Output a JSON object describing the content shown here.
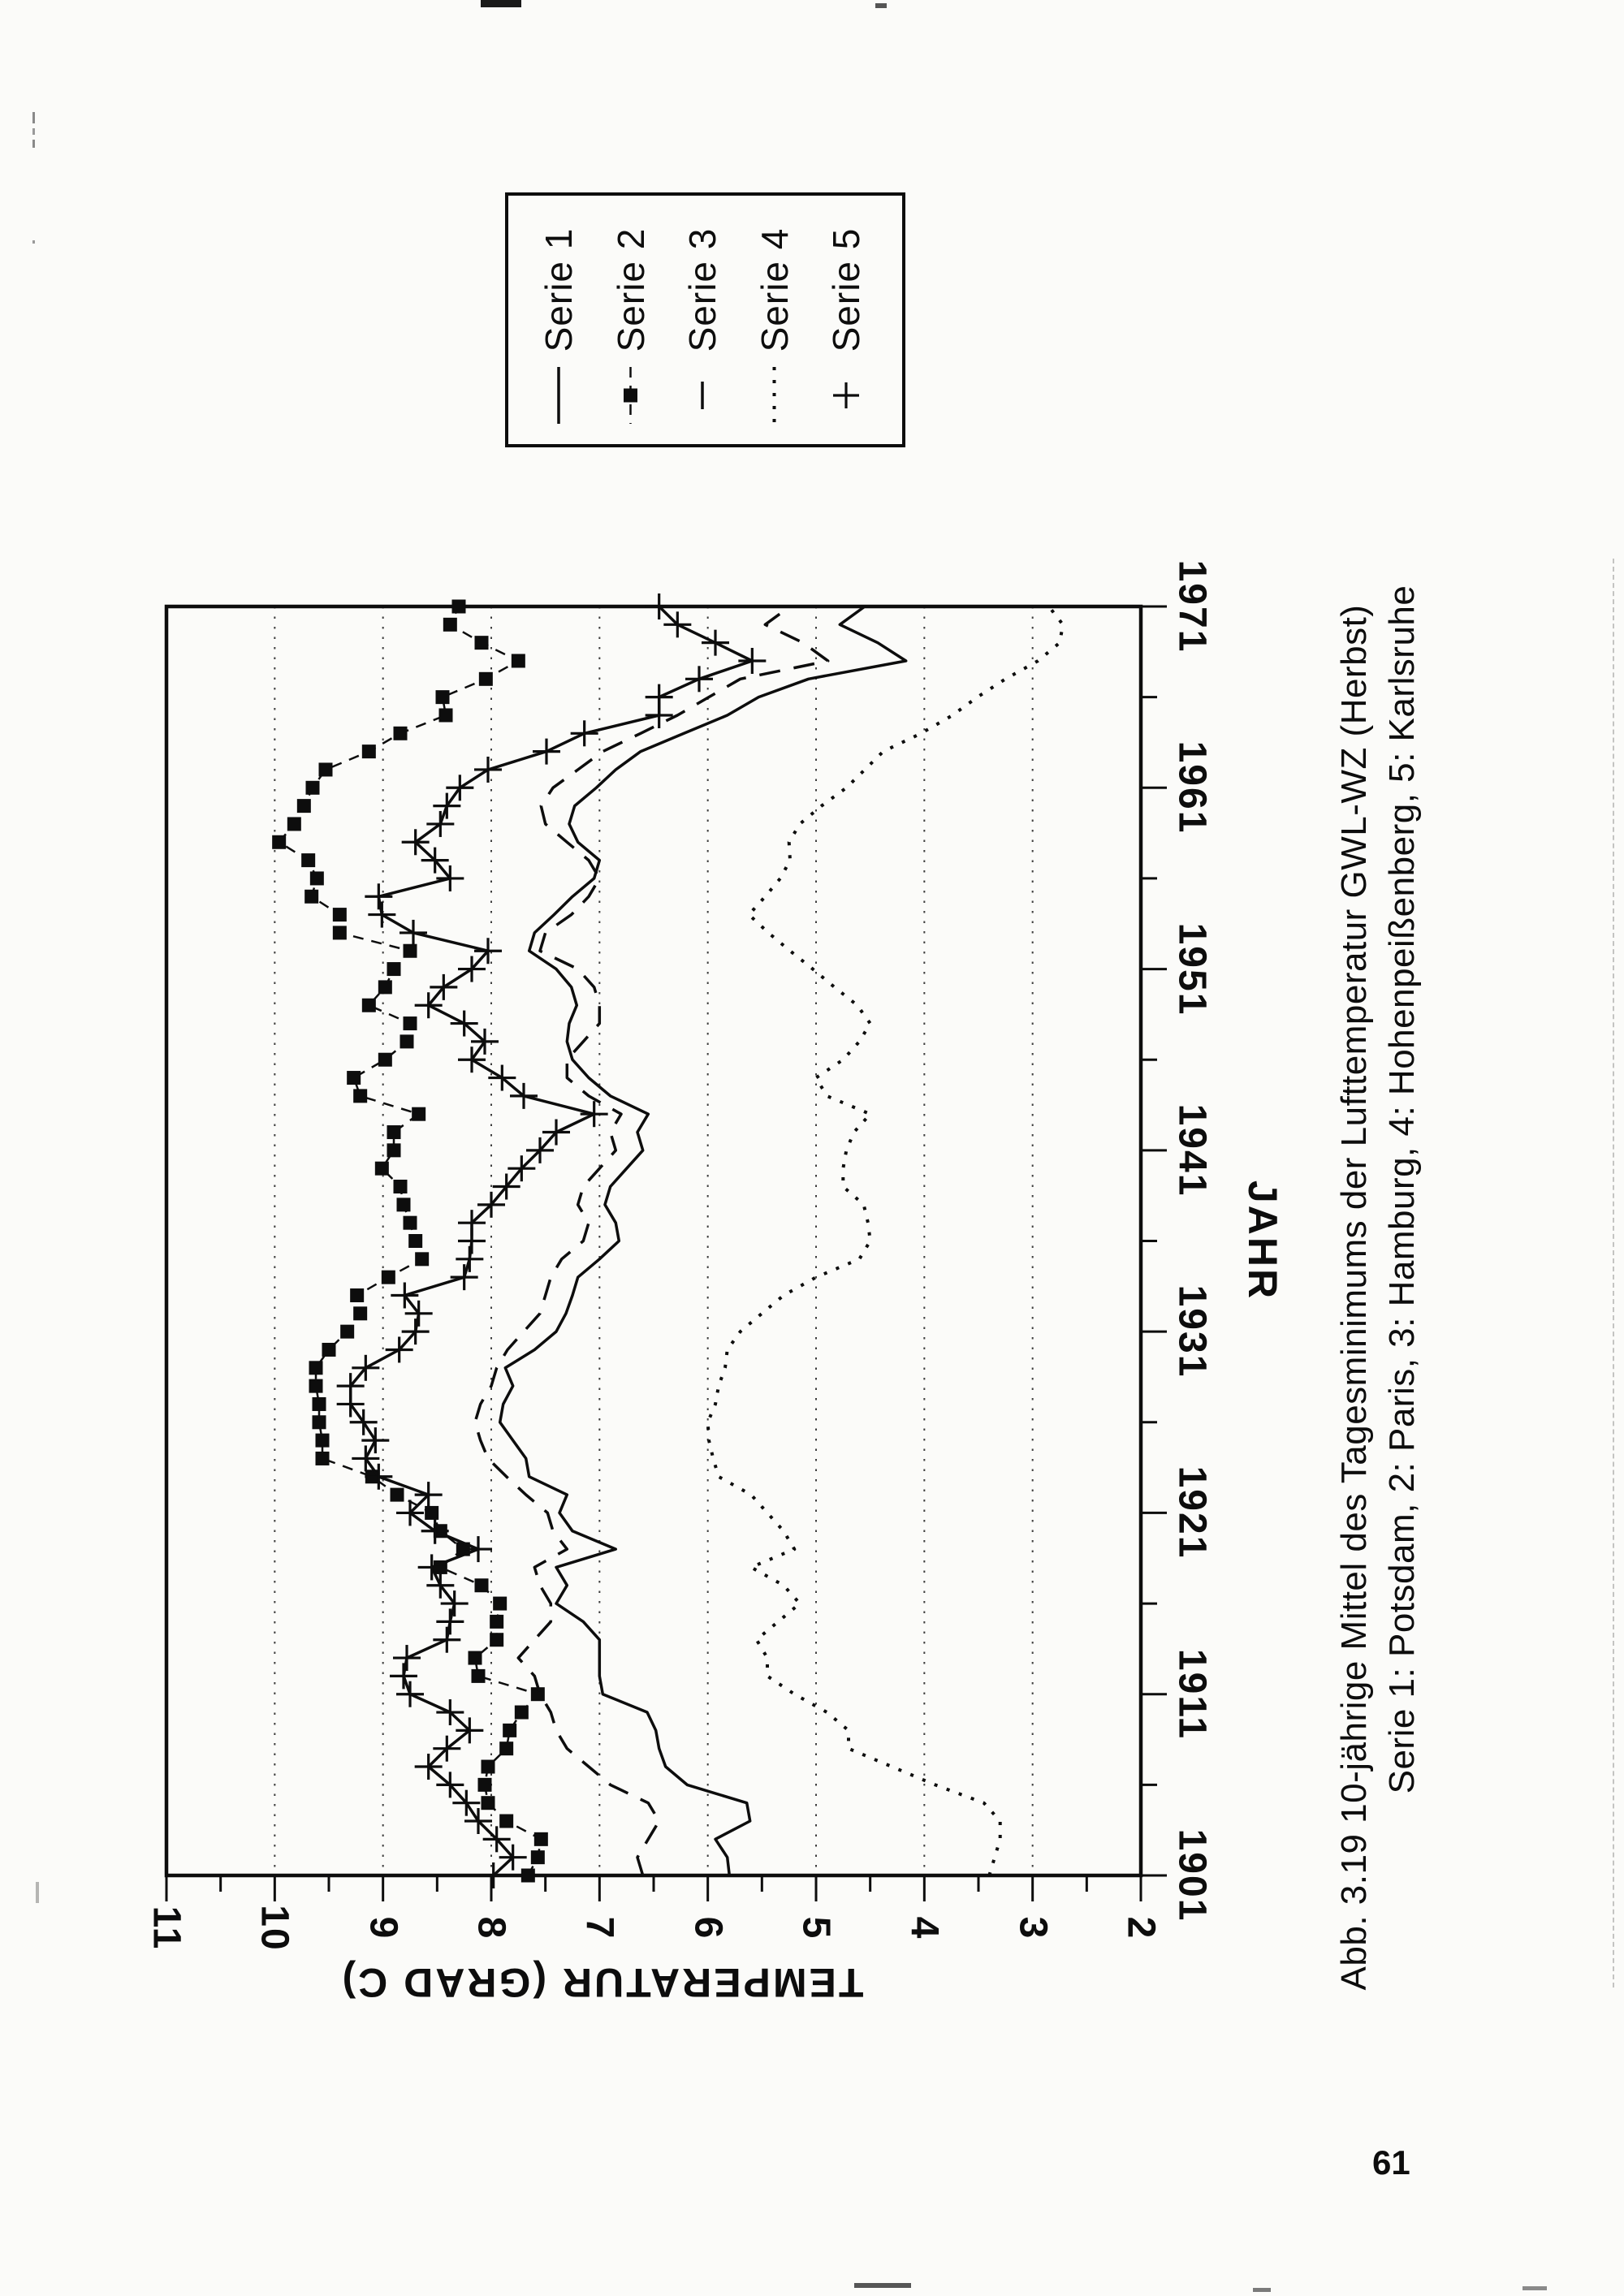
{
  "page_number": "61",
  "colors": {
    "ink": "#0d0d0d",
    "grid": "#2a2a2a",
    "paper": "#fbfbf9"
  },
  "caption": {
    "line1": "Abb. 3.19 10-jährige Mittel des Tagesminimums der Lufttemperatur GWL-WZ (Herbst)",
    "line2": "Serie 1: Potsdam, 2: Paris, 3: Hamburg, 4: Hohenpeißenberg, 5: Karlsruhe"
  },
  "legend": {
    "entries": [
      {
        "label": "Serie 1",
        "series_key": "s1"
      },
      {
        "label": "Serie 2",
        "series_key": "s2"
      },
      {
        "label": "Serie 3",
        "series_key": "s3"
      },
      {
        "label": "Serie 4",
        "series_key": "s4"
      },
      {
        "label": "Serie 5",
        "series_key": "s5"
      }
    ]
  },
  "chart_data": {
    "type": "line",
    "orientation_note": "landscape chart printed rotated on portrait page",
    "xlabel": "JAHR",
    "ylabel": "TEMPERATUR (GRAD C)",
    "x_start_year": 1901,
    "x_end_year": 1971,
    "x_tick_labels": [
      "1901",
      "1911",
      "1921",
      "1931",
      "1941",
      "1951",
      "1961",
      "1971"
    ],
    "x_minor_tick_step": 5,
    "ylim": [
      2,
      11
    ],
    "y_tick_labels": [
      "11",
      "10",
      "9",
      "8",
      "7",
      "6",
      "5",
      "4",
      "3",
      "2"
    ],
    "grid_temps": [
      10,
      9,
      8,
      7,
      6,
      5,
      4,
      3
    ],
    "grid": "dash-dot horizontal lines at integer temperatures",
    "legend_position": "right of plot, boxed",
    "series": [
      {
        "key": "s1",
        "name": "Serie 1",
        "station": "Potsdam",
        "style": "solid",
        "marker": "none",
        "values": [
          5.8,
          5.82,
          5.93,
          5.61,
          5.64,
          6.19,
          6.39,
          6.45,
          6.48,
          6.56,
          6.97,
          7.0,
          7.0,
          7.0,
          7.15,
          7.4,
          7.3,
          7.4,
          6.85,
          7.25,
          7.37,
          7.3,
          7.65,
          7.68,
          7.8,
          7.92,
          7.89,
          7.8,
          7.87,
          7.6,
          7.4,
          7.31,
          7.25,
          7.2,
          7.0,
          6.82,
          6.85,
          6.95,
          6.9,
          6.75,
          6.6,
          6.65,
          6.55,
          6.9,
          7.1,
          7.25,
          7.3,
          7.28,
          7.21,
          7.26,
          7.4,
          7.65,
          7.6,
          7.42,
          7.25,
          7.05,
          7.0,
          7.2,
          7.28,
          7.23,
          7.03,
          6.85,
          6.62,
          6.22,
          5.82,
          5.53,
          5.07,
          4.17,
          4.43,
          4.78,
          4.55
        ]
      },
      {
        "key": "s2",
        "name": "Serie 2",
        "station": "Paris",
        "style": "dashed-fine",
        "marker": "square",
        "values": [
          7.66,
          7.57,
          7.54,
          7.86,
          8.03,
          8.06,
          8.03,
          7.86,
          7.83,
          7.72,
          7.57,
          8.12,
          8.15,
          7.95,
          7.95,
          7.92,
          8.09,
          8.47,
          8.26,
          8.47,
          8.55,
          8.87,
          9.1,
          9.56,
          9.56,
          9.59,
          9.59,
          9.62,
          9.62,
          9.5,
          9.33,
          9.21,
          9.24,
          8.95,
          8.64,
          8.7,
          8.75,
          8.81,
          8.84,
          9.01,
          8.9,
          8.9,
          8.67,
          9.21,
          9.27,
          8.98,
          8.78,
          8.75,
          9.13,
          8.98,
          8.9,
          8.75,
          9.4,
          9.4,
          9.66,
          9.61,
          9.69,
          9.96,
          9.82,
          9.73,
          9.65,
          9.53,
          9.13,
          8.84,
          8.42,
          8.45,
          8.05,
          7.75,
          8.09,
          8.38,
          8.3
        ]
      },
      {
        "key": "s3",
        "name": "Serie 3",
        "station": "Hamburg",
        "style": "long-dash",
        "marker": "none",
        "values": [
          6.6,
          6.65,
          6.55,
          6.45,
          6.55,
          6.9,
          7.1,
          7.3,
          7.4,
          7.45,
          7.55,
          7.6,
          7.75,
          7.6,
          7.45,
          7.45,
          7.55,
          7.6,
          7.3,
          7.43,
          7.48,
          7.68,
          7.86,
          8.03,
          8.1,
          8.15,
          8.1,
          8.0,
          7.95,
          7.85,
          7.7,
          7.55,
          7.5,
          7.45,
          7.35,
          7.15,
          7.1,
          7.2,
          7.15,
          7.0,
          6.85,
          6.9,
          6.8,
          7.1,
          7.3,
          7.3,
          7.15,
          7.0,
          7.0,
          7.05,
          7.2,
          7.55,
          7.5,
          7.26,
          7.1,
          7.0,
          7.1,
          7.3,
          7.5,
          7.54,
          7.43,
          7.2,
          6.97,
          6.62,
          6.28,
          5.99,
          5.7,
          4.89,
          5.12,
          5.47,
          5.24
        ]
      },
      {
        "key": "s4",
        "name": "Serie 4",
        "station": "Hohenpeißenberg",
        "style": "dotted",
        "marker": "none",
        "values": [
          3.4,
          3.35,
          3.3,
          3.3,
          3.45,
          3.9,
          4.3,
          4.7,
          4.7,
          4.9,
          5.2,
          5.45,
          5.45,
          5.55,
          5.35,
          5.15,
          5.3,
          5.6,
          5.2,
          5.3,
          5.45,
          5.6,
          5.9,
          5.95,
          5.99,
          6.0,
          5.93,
          5.9,
          5.84,
          5.82,
          5.7,
          5.5,
          5.3,
          5.0,
          4.6,
          4.5,
          4.52,
          4.56,
          4.75,
          4.75,
          4.72,
          4.65,
          4.5,
          4.9,
          5.0,
          4.75,
          4.6,
          4.5,
          4.62,
          4.83,
          5.03,
          5.24,
          5.44,
          5.62,
          5.47,
          5.33,
          5.24,
          5.25,
          5.15,
          4.95,
          4.72,
          4.55,
          4.38,
          4.03,
          3.74,
          3.51,
          3.25,
          2.95,
          2.75,
          2.72,
          2.85
        ]
      },
      {
        "key": "s5",
        "name": "Serie 5",
        "station": "Karlsruhe",
        "style": "solid",
        "marker": "plus",
        "values": [
          7.98,
          7.8,
          7.95,
          8.12,
          8.23,
          8.38,
          8.58,
          8.41,
          8.2,
          8.38,
          8.75,
          8.81,
          8.78,
          8.41,
          8.38,
          8.34,
          8.47,
          8.55,
          8.12,
          8.52,
          8.75,
          8.58,
          9.04,
          9.16,
          9.07,
          9.18,
          9.3,
          9.3,
          9.16,
          8.85,
          8.7,
          8.67,
          8.8,
          8.25,
          8.2,
          8.18,
          8.18,
          8.0,
          7.86,
          7.72,
          7.55,
          7.4,
          7.05,
          7.7,
          7.9,
          8.18,
          8.06,
          8.25,
          8.58,
          8.44,
          8.18,
          8.03,
          8.72,
          9.01,
          9.04,
          8.38,
          8.52,
          8.7,
          8.47,
          8.41,
          8.29,
          8.03,
          7.49,
          7.14,
          6.45,
          6.45,
          6.08,
          5.59,
          5.93,
          6.28,
          6.45
        ]
      }
    ]
  }
}
